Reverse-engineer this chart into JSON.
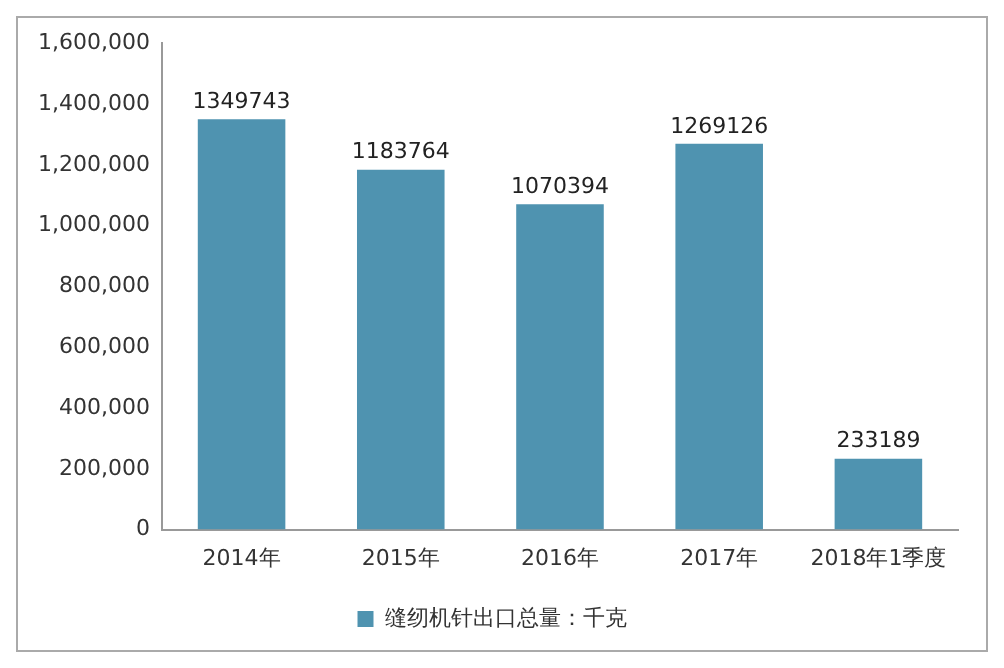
{
  "chart_data": {
    "type": "bar",
    "categories": [
      "2014年",
      "2015年",
      "2016年",
      "2017年",
      "2018年1季度"
    ],
    "series": [
      {
        "name": "缝纫机针出口总量：千克",
        "color": "#4f93b0",
        "values": [
          1349743,
          1183764,
          1070394,
          1269126,
          233189
        ]
      }
    ],
    "ylim": [
      0,
      1600000
    ],
    "yticks": [
      0,
      {
        "value": 200000,
        "label": "200,000"
      },
      {
        "value": 400000,
        "label": "400,000"
      },
      {
        "value": 600000,
        "label": "600,000"
      },
      {
        "value": 800000,
        "label": "800,000"
      },
      {
        "value": 1000000,
        "label": "1,000,000"
      },
      {
        "value": 1200000,
        "label": "1,200,000"
      },
      {
        "value": 1400000,
        "label": "1,400,000"
      },
      {
        "value": 1600000,
        "label": "1,600,000"
      }
    ],
    "data_labels": true,
    "legend": "bottom",
    "grid": false
  }
}
